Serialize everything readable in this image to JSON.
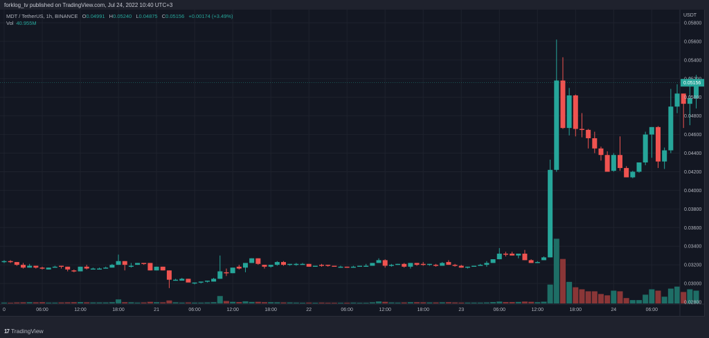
{
  "header": {
    "publisher_line": "forklog_tv published on TradingView.com, Jul 24, 2022 10:40 UTC+3"
  },
  "legend": {
    "symbol": "MDT / TetherUS, 1h, BINANCE",
    "open_label": "O",
    "open": "0.04991",
    "high_label": "H",
    "high": "0.05240",
    "low_label": "L",
    "low": "0.04875",
    "close_label": "C",
    "close": "0.05156",
    "change": "+0.00174 (+3.49%)",
    "vol_label": "Vol",
    "vol": "40.955M"
  },
  "footer": {
    "logo_mark": "17",
    "logo_text": "TradingView"
  },
  "colors": {
    "up": "#26a69a",
    "down": "#ef5350",
    "vol_up": "#1e6e66",
    "vol_down": "#8a3637",
    "grid": "#1e222d",
    "background": "#131722",
    "axis_text": "#b2b5be",
    "last_price_bg": "#26a69a"
  },
  "chart_data": {
    "type": "candlestick",
    "title": "MDT / TetherUS, 1h, BINANCE",
    "ylabel": "USDT",
    "ylim": [
      0.0272,
      0.0583
    ],
    "y_ticks": [
      "0.05800",
      "0.05600",
      "0.05400",
      "0.05200",
      "0.05000",
      "0.04800",
      "0.04600",
      "0.04400",
      "0.04200",
      "0.04000",
      "0.03800",
      "0.03600",
      "0.03400",
      "0.03200",
      "0.03000",
      "0.02800"
    ],
    "x_ticks": [
      {
        "label": "0",
        "hour": 0
      },
      {
        "label": "06:00",
        "hour": 6
      },
      {
        "label": "12:00",
        "hour": 12
      },
      {
        "label": "18:00",
        "hour": 18
      },
      {
        "label": "21",
        "hour": 24
      },
      {
        "label": "06:00",
        "hour": 30
      },
      {
        "label": "12:00",
        "hour": 36
      },
      {
        "label": "18:00",
        "hour": 42
      },
      {
        "label": "22",
        "hour": 48
      },
      {
        "label": "06:00",
        "hour": 54
      },
      {
        "label": "12:00",
        "hour": 60
      },
      {
        "label": "18:00",
        "hour": 66
      },
      {
        "label": "23",
        "hour": 72
      },
      {
        "label": "06:00",
        "hour": 78
      },
      {
        "label": "12:00",
        "hour": 84
      },
      {
        "label": "18:00",
        "hour": 90
      },
      {
        "label": "24",
        "hour": 96
      },
      {
        "label": "06:00",
        "hour": 102
      }
    ],
    "last_price": "0.05156",
    "last_price_value": 0.05156,
    "grid": true,
    "candles_ohlcv": [
      [
        0.0323,
        0.0325,
        0.0322,
        0.0324,
        0.6
      ],
      [
        0.0324,
        0.0325,
        0.0322,
        0.0323,
        0.5
      ],
      [
        0.0323,
        0.0323,
        0.0319,
        0.032,
        0.7
      ],
      [
        0.032,
        0.0322,
        0.0316,
        0.0317,
        0.8
      ],
      [
        0.0317,
        0.0321,
        0.0317,
        0.0319,
        0.9
      ],
      [
        0.0319,
        0.0319,
        0.0316,
        0.0317,
        0.8
      ],
      [
        0.0317,
        0.0318,
        0.0315,
        0.0316,
        0.9
      ],
      [
        0.0315,
        0.0317,
        0.0315,
        0.0317,
        0.6
      ],
      [
        0.0317,
        0.0319,
        0.0317,
        0.0318,
        0.6
      ],
      [
        0.0319,
        0.0319,
        0.0316,
        0.0318,
        0.7
      ],
      [
        0.0318,
        0.0318,
        0.0313,
        0.0315,
        0.8
      ],
      [
        0.0314,
        0.0315,
        0.0312,
        0.0313,
        0.9
      ],
      [
        0.0313,
        0.0318,
        0.0313,
        0.0318,
        1.0
      ],
      [
        0.0318,
        0.032,
        0.0315,
        0.0316,
        0.8
      ],
      [
        0.0316,
        0.0317,
        0.0315,
        0.0316,
        0.7
      ],
      [
        0.0315,
        0.0317,
        0.0315,
        0.0316,
        0.7
      ],
      [
        0.0316,
        0.0318,
        0.0316,
        0.0317,
        0.7
      ],
      [
        0.0317,
        0.0321,
        0.0317,
        0.032,
        0.9
      ],
      [
        0.032,
        0.0331,
        0.032,
        0.0324,
        3.0
      ],
      [
        0.0324,
        0.0324,
        0.0314,
        0.032,
        0.9
      ],
      [
        0.0319,
        0.0322,
        0.0317,
        0.0319,
        0.8
      ],
      [
        0.032,
        0.0322,
        0.032,
        0.0322,
        0.6
      ],
      [
        0.0322,
        0.0322,
        0.032,
        0.0321,
        0.7
      ],
      [
        0.0322,
        0.0322,
        0.0314,
        0.0314,
        1.2
      ],
      [
        0.0314,
        0.0318,
        0.0314,
        0.0318,
        0.9
      ],
      [
        0.0318,
        0.0318,
        0.0314,
        0.0314,
        0.8
      ],
      [
        0.0314,
        0.0314,
        0.0295,
        0.0304,
        2.2
      ],
      [
        0.0303,
        0.0305,
        0.0303,
        0.0304,
        0.8
      ],
      [
        0.0303,
        0.0306,
        0.0303,
        0.0305,
        0.6
      ],
      [
        0.0305,
        0.0305,
        0.0302,
        0.0301,
        0.7
      ],
      [
        0.03,
        0.0301,
        0.0299,
        0.0301,
        0.6
      ],
      [
        0.0301,
        0.0302,
        0.03,
        0.0302,
        0.6
      ],
      [
        0.0302,
        0.0303,
        0.0301,
        0.0303,
        0.7
      ],
      [
        0.0302,
        0.0306,
        0.0302,
        0.0305,
        0.9
      ],
      [
        0.0305,
        0.033,
        0.0305,
        0.0313,
        5.5
      ],
      [
        0.0312,
        0.0316,
        0.0308,
        0.0311,
        1.8
      ],
      [
        0.0311,
        0.0317,
        0.0311,
        0.0317,
        1.2
      ],
      [
        0.0318,
        0.032,
        0.0315,
        0.0316,
        1.0
      ],
      [
        0.0317,
        0.0322,
        0.0312,
        0.0322,
        1.6
      ],
      [
        0.0322,
        0.0327,
        0.0322,
        0.0327,
        1.1
      ],
      [
        0.0327,
        0.0327,
        0.032,
        0.0321,
        1.2
      ],
      [
        0.032,
        0.032,
        0.0316,
        0.0318,
        0.9
      ],
      [
        0.0318,
        0.032,
        0.0317,
        0.032,
        0.9
      ],
      [
        0.032,
        0.0324,
        0.0319,
        0.0323,
        0.8
      ],
      [
        0.0323,
        0.0324,
        0.0319,
        0.032,
        0.7
      ],
      [
        0.032,
        0.0321,
        0.0319,
        0.0321,
        0.7
      ],
      [
        0.0321,
        0.0322,
        0.0319,
        0.0321,
        0.6
      ],
      [
        0.0321,
        0.0322,
        0.0321,
        0.0321,
        0.5
      ],
      [
        0.0321,
        0.0321,
        0.0318,
        0.0318,
        0.6
      ],
      [
        0.0318,
        0.0319,
        0.0318,
        0.0319,
        0.5
      ],
      [
        0.032,
        0.0321,
        0.0318,
        0.0319,
        0.6
      ],
      [
        0.032,
        0.032,
        0.0318,
        0.0319,
        0.5
      ],
      [
        0.0319,
        0.0319,
        0.0318,
        0.0318,
        0.5
      ],
      [
        0.0318,
        0.0319,
        0.0317,
        0.0318,
        0.5
      ],
      [
        0.0318,
        0.0318,
        0.0317,
        0.0317,
        0.5
      ],
      [
        0.0317,
        0.0319,
        0.0317,
        0.0318,
        0.6
      ],
      [
        0.0318,
        0.0319,
        0.0318,
        0.0319,
        0.5
      ],
      [
        0.0319,
        0.0321,
        0.0318,
        0.0319,
        0.5
      ],
      [
        0.0319,
        0.0322,
        0.0319,
        0.0322,
        0.8
      ],
      [
        0.0322,
        0.0327,
        0.0322,
        0.0325,
        1.5
      ],
      [
        0.0325,
        0.0326,
        0.0317,
        0.0319,
        1.2
      ],
      [
        0.0319,
        0.0321,
        0.0318,
        0.032,
        0.7
      ],
      [
        0.0321,
        0.0321,
        0.032,
        0.0321,
        0.6
      ],
      [
        0.0321,
        0.0322,
        0.0317,
        0.0318,
        0.7
      ],
      [
        0.0318,
        0.0322,
        0.0316,
        0.0322,
        0.9
      ],
      [
        0.0322,
        0.0322,
        0.0319,
        0.032,
        0.9
      ],
      [
        0.0321,
        0.0323,
        0.0319,
        0.032,
        0.8
      ],
      [
        0.032,
        0.0321,
        0.0319,
        0.0321,
        0.7
      ],
      [
        0.032,
        0.0321,
        0.0318,
        0.0319,
        0.7
      ],
      [
        0.0319,
        0.0323,
        0.0319,
        0.0322,
        0.8
      ],
      [
        0.0323,
        0.0325,
        0.032,
        0.032,
        0.9
      ],
      [
        0.032,
        0.0321,
        0.0318,
        0.0319,
        0.7
      ],
      [
        0.0319,
        0.032,
        0.0317,
        0.0317,
        0.6
      ],
      [
        0.0317,
        0.0318,
        0.0316,
        0.0318,
        0.6
      ],
      [
        0.0318,
        0.0319,
        0.0318,
        0.0319,
        0.6
      ],
      [
        0.0319,
        0.0321,
        0.0319,
        0.032,
        0.6
      ],
      [
        0.032,
        0.0324,
        0.0318,
        0.0322,
        0.7
      ],
      [
        0.0322,
        0.0326,
        0.0322,
        0.0326,
        1.0
      ],
      [
        0.0326,
        0.0338,
        0.0326,
        0.0332,
        1.4
      ],
      [
        0.0332,
        0.0334,
        0.0329,
        0.0331,
        1.0
      ],
      [
        0.0332,
        0.0334,
        0.033,
        0.033,
        1.0
      ],
      [
        0.033,
        0.0332,
        0.0327,
        0.0332,
        1.1
      ],
      [
        0.0332,
        0.0336,
        0.0325,
        0.0325,
        1.4
      ],
      [
        0.0325,
        0.0326,
        0.0322,
        0.0322,
        1.2
      ],
      [
        0.0323,
        0.0324,
        0.0322,
        0.0323,
        0.9
      ],
      [
        0.0325,
        0.0329,
        0.0325,
        0.0328,
        1.3
      ],
      [
        0.0328,
        0.0433,
        0.0328,
        0.0422,
        14.0
      ],
      [
        0.0422,
        0.0562,
        0.042,
        0.0518,
        48.0
      ],
      [
        0.0518,
        0.0543,
        0.0466,
        0.0467,
        33.0
      ],
      [
        0.0467,
        0.051,
        0.0459,
        0.0502,
        16.0
      ],
      [
        0.0502,
        0.0503,
        0.0458,
        0.0466,
        12.0
      ],
      [
        0.0466,
        0.0483,
        0.0457,
        0.0465,
        10.5
      ],
      [
        0.0465,
        0.0466,
        0.0445,
        0.0456,
        9.0
      ],
      [
        0.0456,
        0.0463,
        0.044,
        0.0445,
        9.0
      ],
      [
        0.0445,
        0.0447,
        0.0432,
        0.0438,
        7.0
      ],
      [
        0.0438,
        0.0442,
        0.0427,
        0.042,
        6.0
      ],
      [
        0.0421,
        0.044,
        0.042,
        0.0438,
        9.5
      ],
      [
        0.0438,
        0.0458,
        0.0421,
        0.0424,
        9.0
      ],
      [
        0.0424,
        0.0426,
        0.0414,
        0.0414,
        4.0
      ],
      [
        0.0414,
        0.0421,
        0.0413,
        0.042,
        2.5
      ],
      [
        0.042,
        0.043,
        0.0419,
        0.043,
        2.5
      ],
      [
        0.043,
        0.0463,
        0.0427,
        0.046,
        6.5
      ],
      [
        0.046,
        0.0468,
        0.0435,
        0.0468,
        10.5
      ],
      [
        0.0468,
        0.0469,
        0.0424,
        0.0431,
        9.5
      ],
      [
        0.0431,
        0.0446,
        0.0423,
        0.0443,
        5.0
      ],
      [
        0.0443,
        0.0509,
        0.044,
        0.049,
        11.0
      ],
      [
        0.049,
        0.0514,
        0.0483,
        0.0504,
        12.5
      ],
      [
        0.0504,
        0.0504,
        0.0467,
        0.0493,
        8.5
      ],
      [
        0.0493,
        0.0522,
        0.047,
        0.0499,
        10.5
      ],
      [
        0.0499,
        0.0524,
        0.0488,
        0.0516,
        9.5
      ]
    ]
  }
}
